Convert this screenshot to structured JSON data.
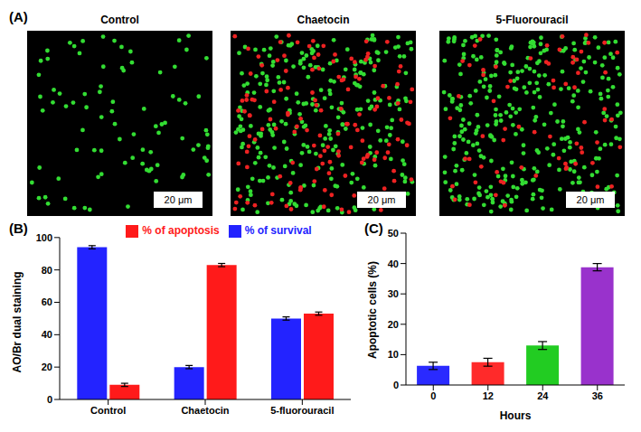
{
  "images": {
    "panel_label": "(A)",
    "panels": [
      {
        "title": "Control",
        "scale_bar": "20 μm"
      },
      {
        "title": "Chaetocin",
        "scale_bar": "20 μm"
      },
      {
        "title": "5-Fluorouracil",
        "scale_bar": "20 μm"
      }
    ]
  },
  "chart_data": [
    {
      "type": "bar",
      "panel_label": "(B)",
      "y_label": "AO/Br dual staining",
      "categories": [
        "Control",
        "Chaetocin",
        "5-fluorouracil"
      ],
      "series": [
        {
          "name": "% of survival",
          "color": "#2323ff",
          "values": [
            94,
            20,
            50
          ],
          "errors": [
            1,
            1,
            1
          ]
        },
        {
          "name": "% of apoptosis",
          "color": "#ff1a1a",
          "values": [
            9,
            83,
            53
          ],
          "errors": [
            1,
            1,
            1
          ]
        }
      ],
      "ylim": [
        0,
        100
      ],
      "yticks": [
        0,
        20,
        40,
        60,
        80,
        100
      ],
      "legend": "top",
      "grid": false
    },
    {
      "type": "bar",
      "panel_label": "(C)",
      "x_label": "Hours",
      "y_label": "Apoptotic cells (%)",
      "categories": [
        "0",
        "12",
        "24",
        "36"
      ],
      "values": [
        6.3,
        7.5,
        13,
        38.8
      ],
      "errors": [
        1.2,
        1.3,
        1.3,
        1.2
      ],
      "colors": [
        "#2a2aff",
        "#ff2a2a",
        "#22cc22",
        "#9932cc"
      ],
      "ylim": [
        0,
        50
      ],
      "yticks": [
        0,
        10,
        20,
        30,
        40,
        50
      ],
      "grid": false
    }
  ]
}
